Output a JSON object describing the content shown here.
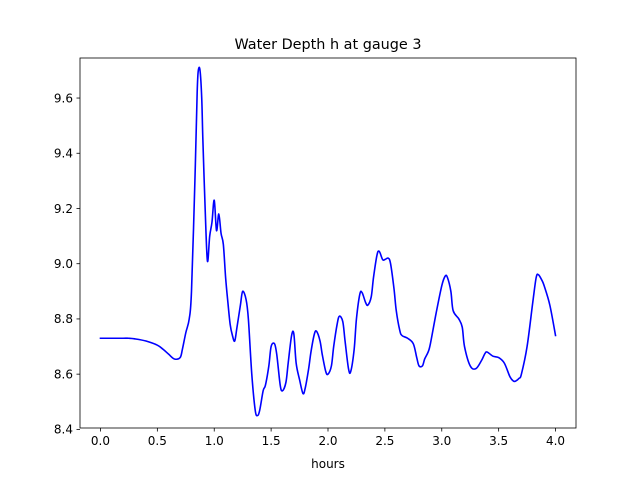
{
  "chart_data": {
    "type": "line",
    "title": "Water Depth h at gauge 3",
    "xlabel": "hours",
    "ylabel": "",
    "xlim": [
      -0.18,
      4.18
    ],
    "ylim": [
      8.405,
      9.745
    ],
    "xticks": [
      0.0,
      0.5,
      1.0,
      1.5,
      2.0,
      2.5,
      3.0,
      3.5,
      4.0
    ],
    "xtick_labels": [
      "0.0",
      "0.5",
      "1.0",
      "1.5",
      "2.0",
      "2.5",
      "3.0",
      "3.5",
      "4.0"
    ],
    "yticks": [
      8.4,
      8.6,
      8.8,
      9.0,
      9.2,
      9.4,
      9.6
    ],
    "ytick_labels": [
      "8.4",
      "8.6",
      "8.8",
      "9.0",
      "9.2",
      "9.4",
      "9.6"
    ],
    "grid": false,
    "legend": "none",
    "series": [
      {
        "color": "#0000ff",
        "x": [
          0.0,
          0.1,
          0.2,
          0.25,
          0.3,
          0.4,
          0.5,
          0.55,
          0.6,
          0.65,
          0.7,
          0.72,
          0.75,
          0.78,
          0.8,
          0.83,
          0.85,
          0.86,
          0.875,
          0.89,
          0.9,
          0.92,
          0.94,
          0.96,
          0.98,
          1.0,
          1.02,
          1.04,
          1.06,
          1.08,
          1.1,
          1.12,
          1.14,
          1.16,
          1.18,
          1.2,
          1.23,
          1.25,
          1.28,
          1.3,
          1.33,
          1.36,
          1.38,
          1.4,
          1.43,
          1.45,
          1.48,
          1.5,
          1.53,
          1.55,
          1.58,
          1.6,
          1.63,
          1.65,
          1.68,
          1.7,
          1.72,
          1.75,
          1.78,
          1.8,
          1.83,
          1.85,
          1.88,
          1.9,
          1.93,
          1.95,
          1.98,
          2.0,
          2.03,
          2.05,
          2.08,
          2.1,
          2.13,
          2.15,
          2.18,
          2.2,
          2.23,
          2.25,
          2.28,
          2.3,
          2.33,
          2.35,
          2.38,
          2.4,
          2.43,
          2.45,
          2.48,
          2.5,
          2.53,
          2.55,
          2.58,
          2.6,
          2.63,
          2.65,
          2.7,
          2.75,
          2.78,
          2.8,
          2.83,
          2.85,
          2.88,
          2.9,
          2.95,
          3.0,
          3.03,
          3.05,
          3.08,
          3.1,
          3.15,
          3.18,
          3.2,
          3.25,
          3.3,
          3.35,
          3.38,
          3.4,
          3.45,
          3.5,
          3.55,
          3.6,
          3.63,
          3.65,
          3.68,
          3.7,
          3.75,
          3.8,
          3.83,
          3.85,
          3.88,
          3.9,
          3.95,
          4.0
        ],
        "y": [
          8.73,
          8.73,
          8.73,
          8.73,
          8.728,
          8.72,
          8.705,
          8.69,
          8.672,
          8.655,
          8.66,
          8.69,
          8.75,
          8.8,
          8.9,
          9.3,
          9.62,
          9.7,
          9.7,
          9.6,
          9.45,
          9.2,
          9.01,
          9.1,
          9.15,
          9.23,
          9.12,
          9.18,
          9.11,
          9.07,
          8.95,
          8.86,
          8.78,
          8.74,
          8.72,
          8.77,
          8.85,
          8.9,
          8.87,
          8.8,
          8.6,
          8.47,
          8.45,
          8.47,
          8.54,
          8.56,
          8.63,
          8.7,
          8.71,
          8.67,
          8.56,
          8.54,
          8.57,
          8.64,
          8.74,
          8.745,
          8.64,
          8.58,
          8.53,
          8.55,
          8.62,
          8.68,
          8.745,
          8.755,
          8.72,
          8.67,
          8.61,
          8.6,
          8.63,
          8.7,
          8.78,
          8.81,
          8.79,
          8.72,
          8.62,
          8.61,
          8.69,
          8.8,
          8.89,
          8.895,
          8.86,
          8.85,
          8.88,
          8.95,
          9.03,
          9.045,
          9.015,
          9.015,
          9.02,
          9.0,
          8.91,
          8.83,
          8.76,
          8.74,
          8.73,
          8.71,
          8.66,
          8.63,
          8.63,
          8.655,
          8.68,
          8.71,
          8.82,
          8.92,
          8.955,
          8.95,
          8.9,
          8.83,
          8.8,
          8.77,
          8.7,
          8.63,
          8.62,
          8.65,
          8.675,
          8.68,
          8.665,
          8.66,
          8.64,
          8.59,
          8.575,
          8.575,
          8.585,
          8.6,
          8.7,
          8.86,
          8.95,
          8.96,
          8.94,
          8.92,
          8.85,
          8.74
        ]
      }
    ]
  }
}
